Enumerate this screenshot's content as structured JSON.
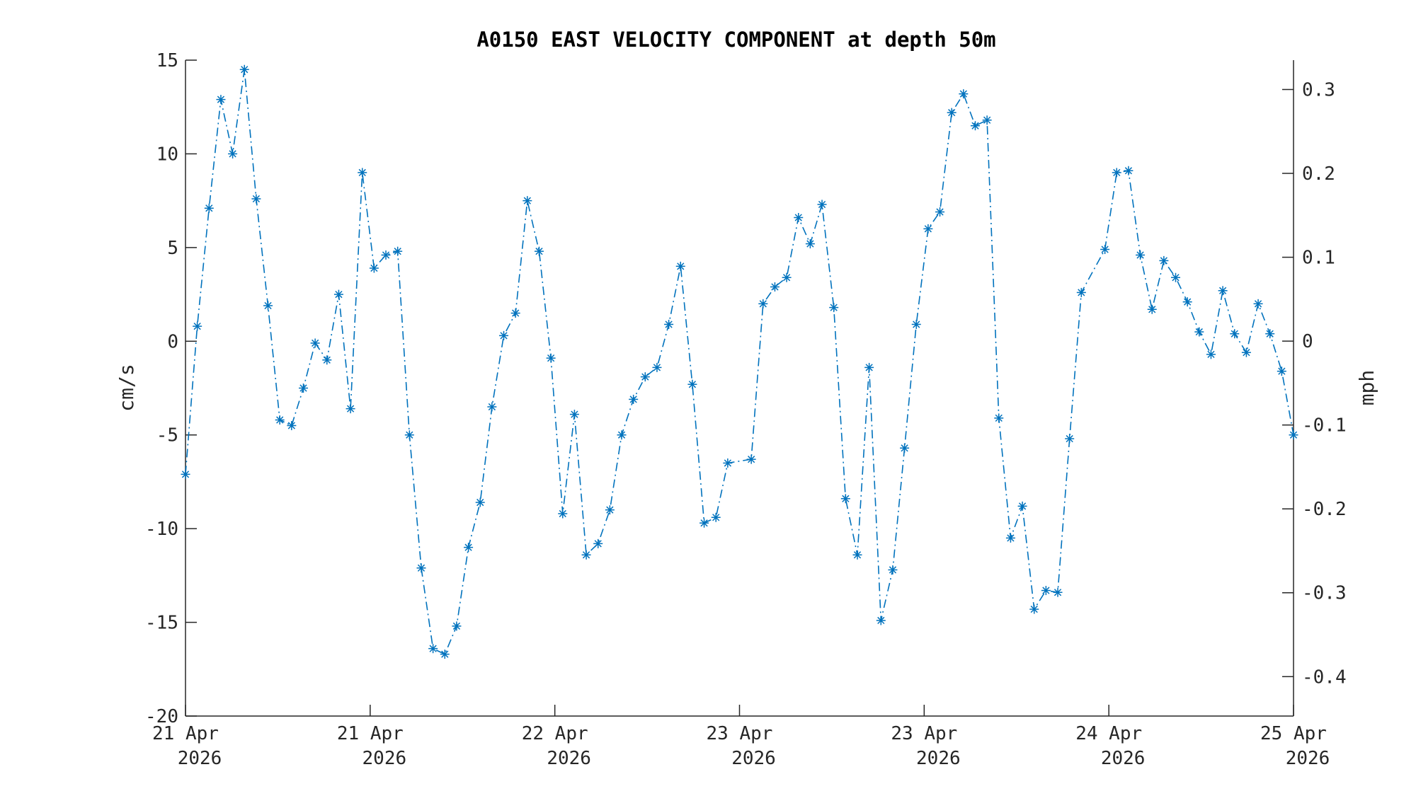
{
  "chart_data": {
    "type": "line",
    "title": "A0150 EAST VELOCITY COMPONENT at depth 50m",
    "ylabel": "cm/s",
    "y2label": "mph",
    "ylim": [
      -20,
      15
    ],
    "y2lim": [
      -0.447,
      0.335
    ],
    "yticks": [
      "-20",
      "-15",
      "-10",
      "-5",
      "0",
      "5",
      "10",
      "15"
    ],
    "y2ticks": [
      "-0.4",
      "-0.3",
      "-0.2",
      "-0.1",
      "0",
      "0.1",
      "0.2",
      "0.3"
    ],
    "xticks": [
      {
        "day": "21 Apr",
        "year": "2026"
      },
      {
        "day": "21 Apr",
        "year": "2026"
      },
      {
        "day": "22 Apr",
        "year": "2026"
      },
      {
        "day": "23 Apr",
        "year": "2026"
      },
      {
        "day": "23 Apr",
        "year": "2026"
      },
      {
        "day": "24 Apr",
        "year": "2026"
      },
      {
        "day": "25 Apr",
        "year": "2026"
      }
    ],
    "grid": false,
    "legend": "none",
    "series_color": "#0072BD",
    "marker": "asterisk",
    "line_style": "dash-dot",
    "values": [
      -7.1,
      0.8,
      7.1,
      12.9,
      10.0,
      14.5,
      7.6,
      1.9,
      -4.2,
      -4.5,
      -2.5,
      -0.1,
      -1.0,
      2.5,
      -3.6,
      9.0,
      3.9,
      4.6,
      4.8,
      -5.0,
      -12.1,
      -16.4,
      -16.7,
      -15.2,
      -11.0,
      -8.6,
      -3.5,
      0.3,
      1.5,
      7.5,
      4.8,
      -0.9,
      -9.2,
      -3.9,
      -11.4,
      -10.8,
      -9.0,
      -5.0,
      -3.1,
      -1.9,
      -1.4,
      0.9,
      4.0,
      -2.3,
      -9.7,
      -9.4,
      -6.5,
      null,
      -6.3,
      2.0,
      2.9,
      3.4,
      6.6,
      5.2,
      7.3,
      1.8,
      -8.4,
      -11.4,
      -1.4,
      -14.9,
      -12.2,
      -5.7,
      0.9,
      6.0,
      6.9,
      12.2,
      13.2,
      11.5,
      11.8,
      -4.1,
      -10.5,
      -8.8,
      -14.3,
      -13.3,
      -13.4,
      -5.2,
      2.6,
      null,
      4.9,
      9.0,
      9.1,
      4.6,
      1.7,
      4.3,
      3.4,
      2.1,
      0.5,
      -0.7,
      2.7,
      0.4,
      -0.6,
      2.0,
      0.4,
      -1.6,
      -5.0
    ]
  }
}
